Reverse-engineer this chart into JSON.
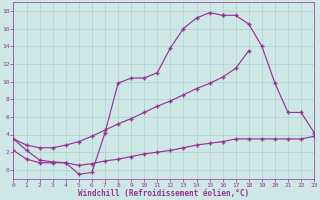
{
  "xlabel": "Windchill (Refroidissement éolien,°C)",
  "background_color": "#cde8e5",
  "grid_color": "#aacccc",
  "line_color": "#993399",
  "xlim": [
    0,
    23
  ],
  "ylim": [
    -1.0,
    19.0
  ],
  "xticks": [
    0,
    1,
    2,
    3,
    4,
    5,
    6,
    7,
    8,
    9,
    10,
    11,
    12,
    13,
    14,
    15,
    16,
    17,
    18,
    19,
    20,
    21,
    22,
    23
  ],
  "yticks": [
    0,
    2,
    4,
    6,
    8,
    10,
    12,
    14,
    16,
    18
  ],
  "seg1_x": [
    0,
    1,
    2,
    3,
    4,
    5,
    6,
    7,
    8,
    9,
    10,
    11,
    12,
    13,
    14,
    15,
    16
  ],
  "seg1_y": [
    3.5,
    2.2,
    1.1,
    0.9,
    0.8,
    -0.5,
    -0.3,
    4.2,
    9.8,
    10.4,
    10.4,
    11.0,
    13.8,
    16.0,
    17.2,
    17.8,
    17.5
  ],
  "seg2_x": [
    16,
    17,
    18,
    19,
    20,
    21,
    22,
    23
  ],
  "seg2_y": [
    17.5,
    17.5,
    16.5,
    14.0,
    9.8,
    6.5,
    6.5,
    4.2
  ],
  "seg3_x": [
    0,
    1,
    2,
    3,
    4,
    5,
    6,
    7,
    8,
    9,
    10,
    11,
    12,
    13,
    14,
    15,
    16,
    17,
    18
  ],
  "seg3_y": [
    3.5,
    2.8,
    2.5,
    2.5,
    2.8,
    3.2,
    3.8,
    4.5,
    5.2,
    5.8,
    6.5,
    7.2,
    7.8,
    8.5,
    9.2,
    9.8,
    10.5,
    11.5,
    13.5
  ],
  "seg4_x": [
    0,
    1,
    2,
    3,
    4,
    5,
    6,
    7,
    8,
    9,
    10,
    11,
    12,
    13,
    14,
    15,
    16,
    17,
    18,
    19,
    20,
    21,
    22,
    23
  ],
  "seg4_y": [
    2.2,
    1.2,
    0.8,
    0.8,
    0.8,
    0.5,
    0.7,
    1.0,
    1.2,
    1.5,
    1.8,
    2.0,
    2.2,
    2.5,
    2.8,
    3.0,
    3.2,
    3.5,
    3.5,
    3.5,
    3.5,
    3.5,
    3.5,
    3.8
  ]
}
